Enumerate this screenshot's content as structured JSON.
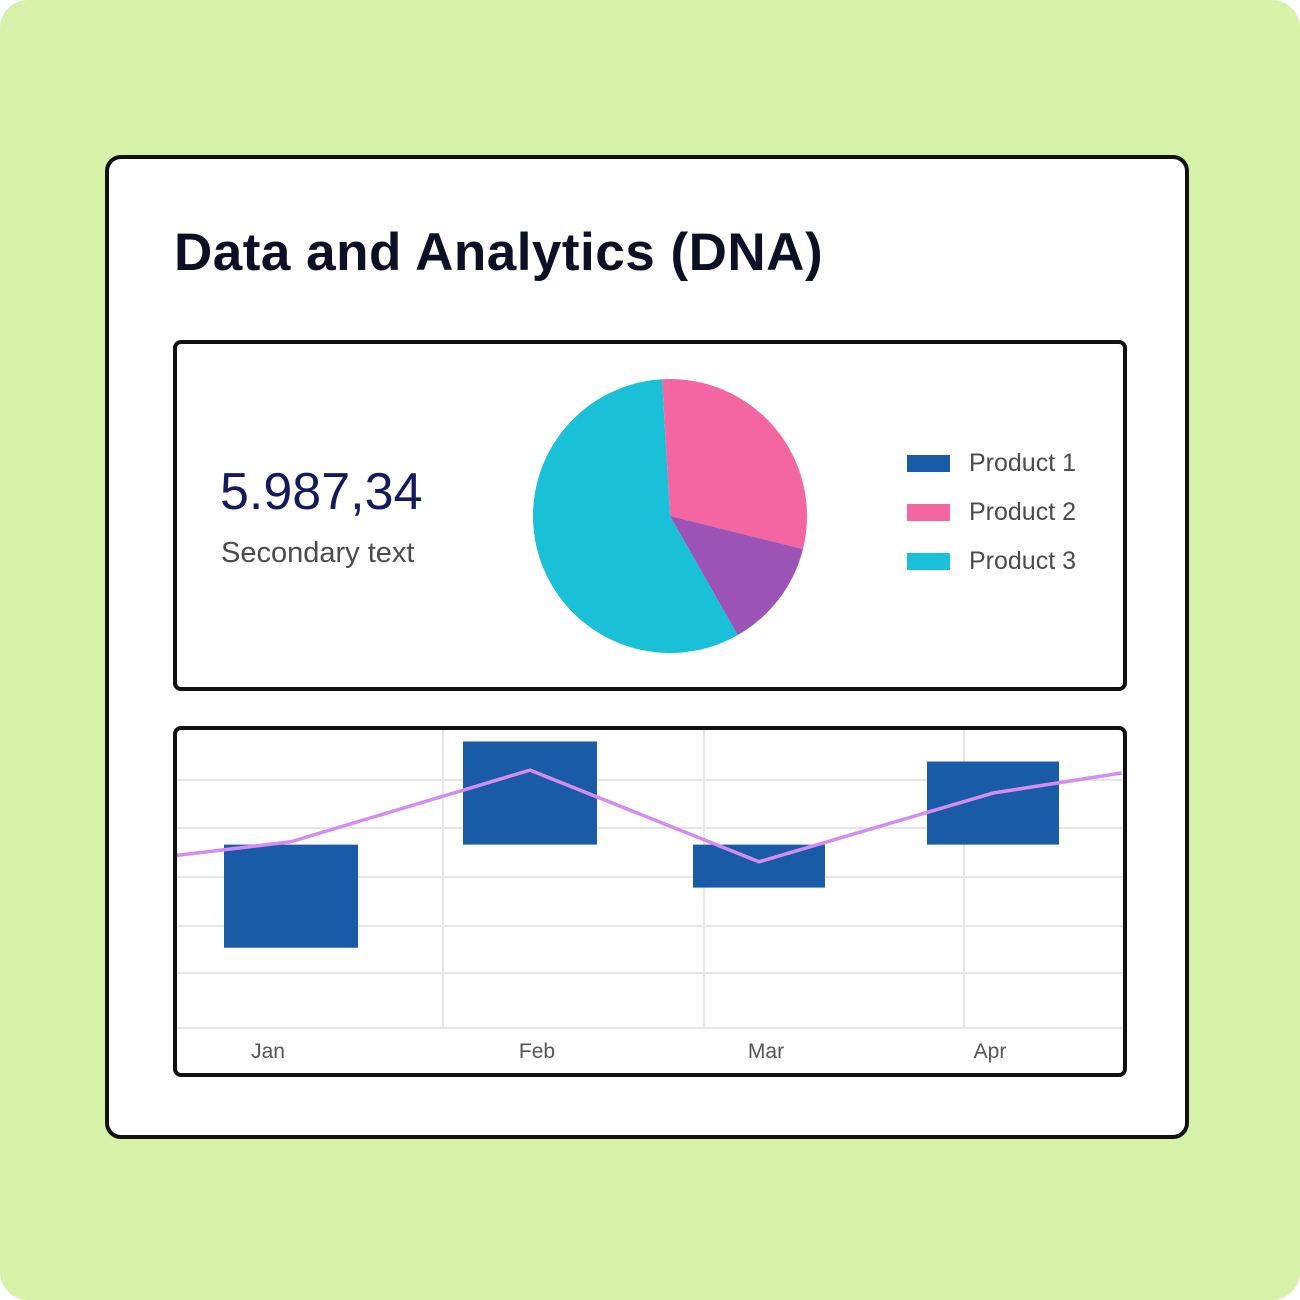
{
  "header": {
    "title": "Data and Analytics (DNA)"
  },
  "kpi": {
    "value": "5.987,34",
    "secondary": "Secondary text"
  },
  "colors": {
    "background": "#d5f2a8",
    "product1": "#1a5ba8",
    "product2": "#f466a2",
    "product3": "#19c0d8",
    "slice_extra": "#9b54b6",
    "line": "#d58cf2",
    "bar": "#1a5ba8",
    "grid": "#e6e6e6"
  },
  "chart_data": [
    {
      "type": "pie",
      "legend": "right",
      "series": [
        {
          "name": "Product 1",
          "value": 29.8,
          "color": "#f466a2"
        },
        {
          "name": "Product 2",
          "value": 12.9,
          "color": "#9b54b6"
        },
        {
          "name": "Product 3",
          "value": 57.3,
          "color": "#19c0d8"
        }
      ],
      "legend_items": [
        {
          "label": "Product 1",
          "color": "#1a5ba8"
        },
        {
          "label": "Product 2",
          "color": "#f466a2"
        },
        {
          "label": "Product 3",
          "color": "#19c0d8"
        }
      ]
    },
    {
      "type": "bar",
      "categories": [
        "Jan",
        "Feb",
        "Mar",
        "Apr"
      ],
      "bar_values": [
        -1.8,
        1.8,
        -0.75,
        1.45
      ],
      "line_x": [
        -0.8,
        0.0,
        1.0,
        2.0,
        3.0,
        3.55
      ],
      "line_values": [
        -0.35,
        0.05,
        1.3,
        -0.3,
        0.9,
        1.25
      ],
      "ylim": [
        -3.2,
        2.0
      ],
      "grid": true
    }
  ]
}
